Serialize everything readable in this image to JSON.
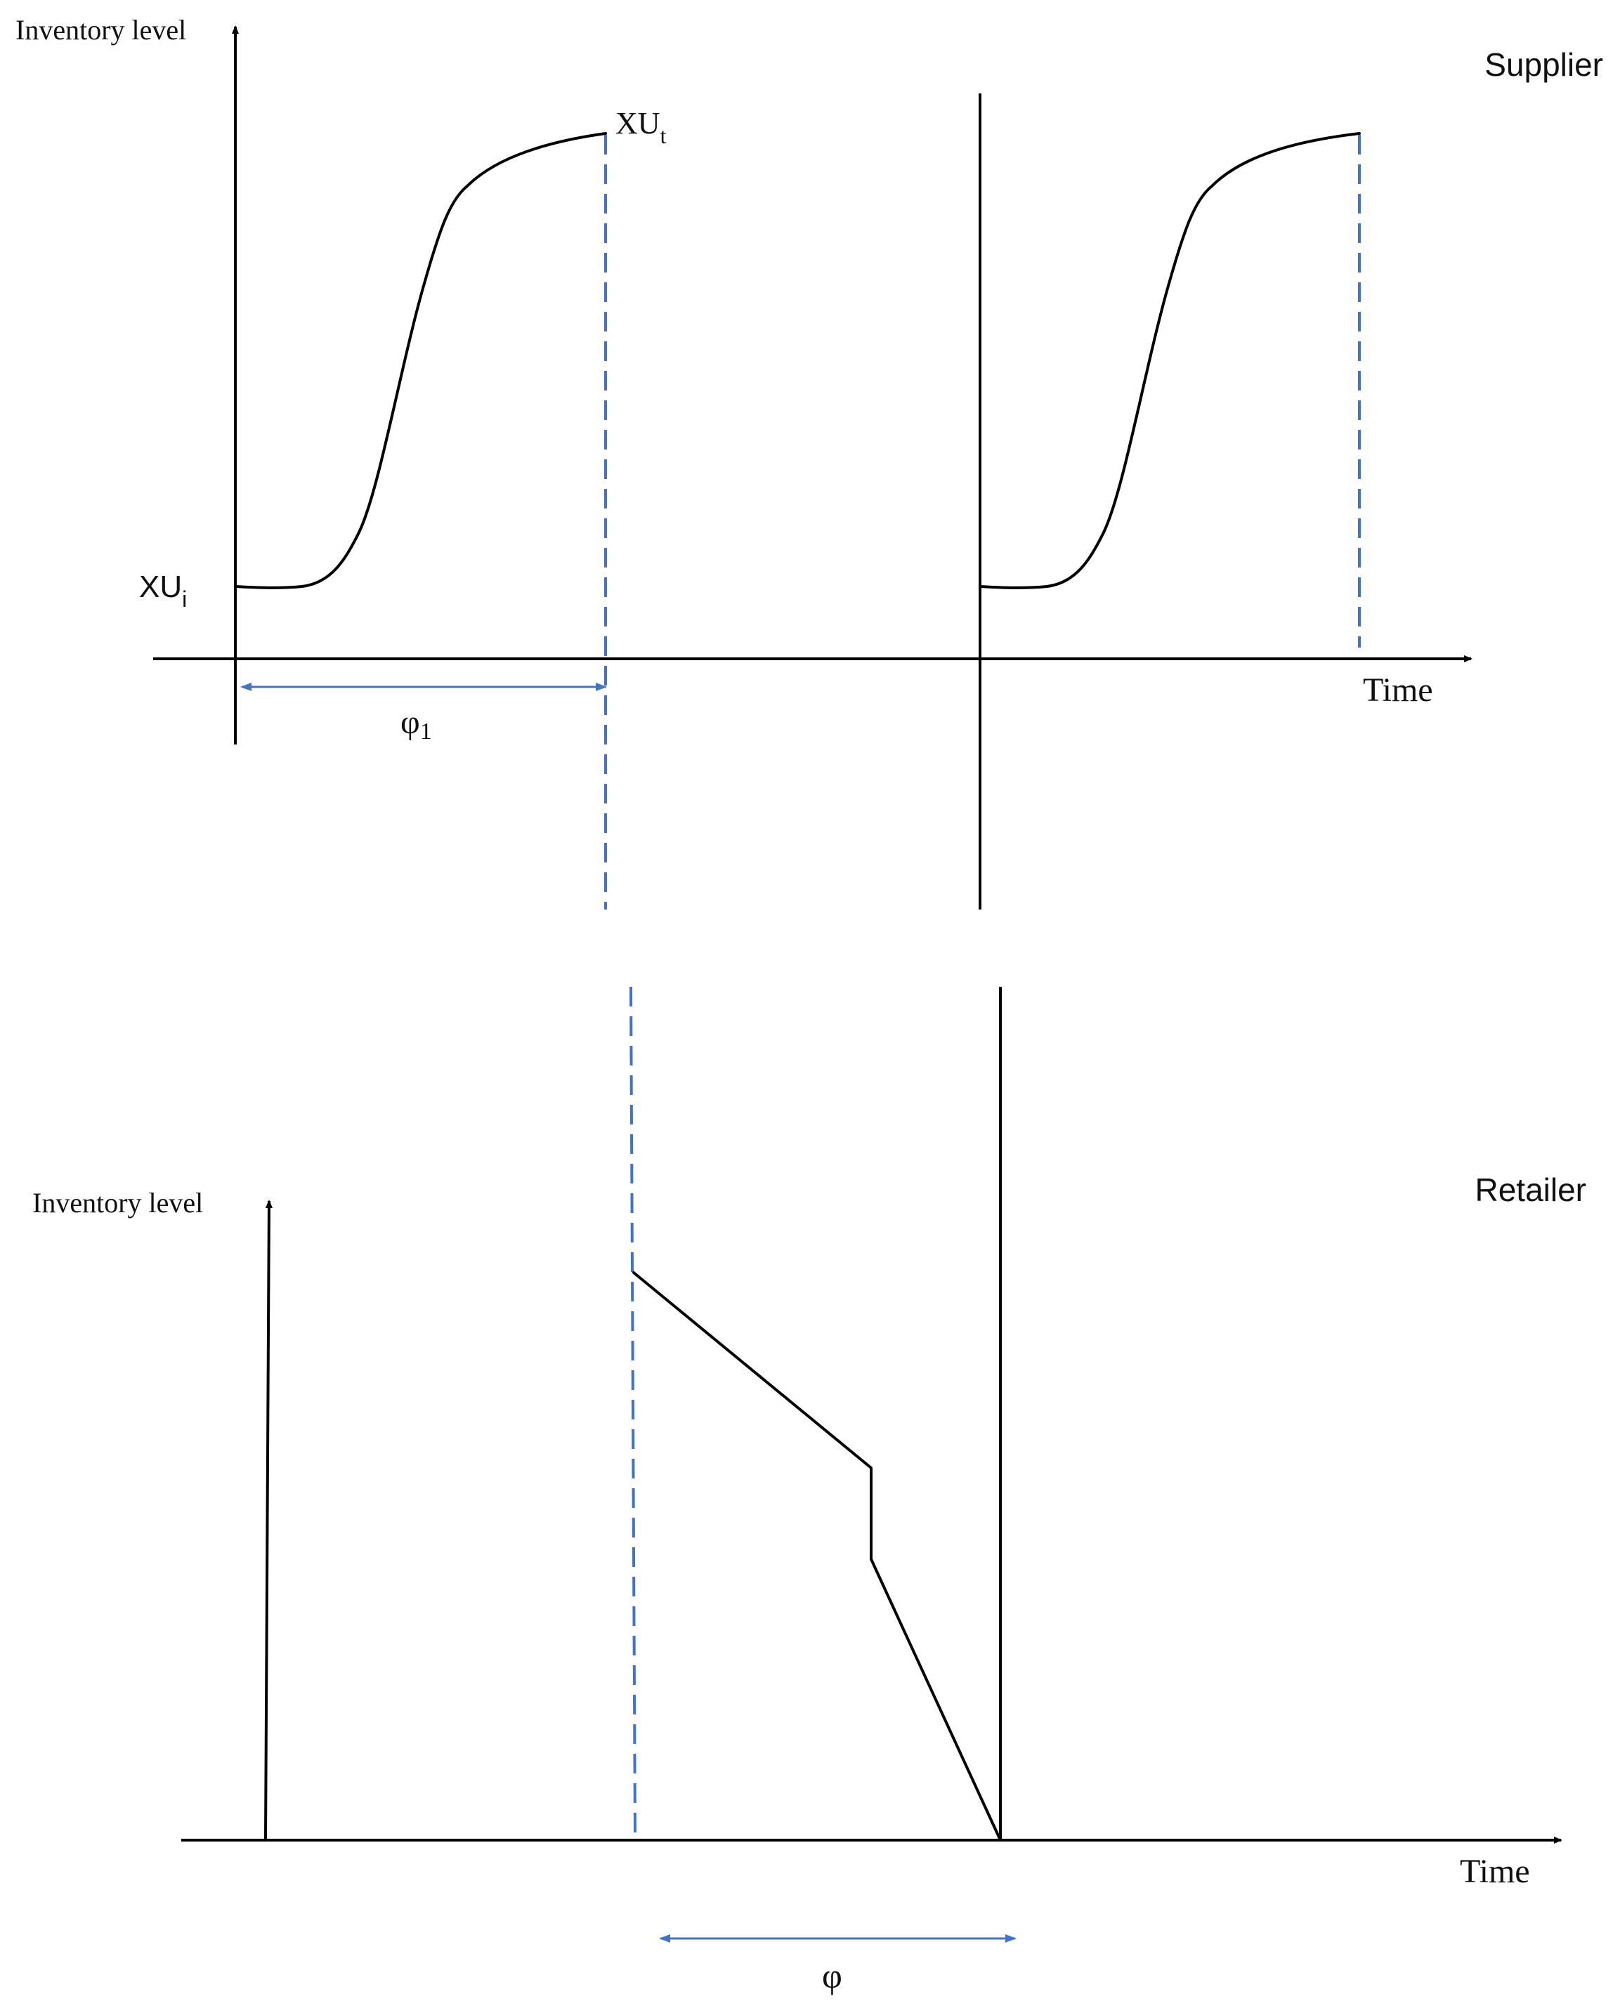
{
  "supplier": {
    "title": "Supplier",
    "y_label": "Inventory level",
    "x_label": "Time",
    "label_start": "XU",
    "label_start_sub": "i",
    "label_end": "XU",
    "label_end_sub": "t",
    "interval_label": "φ",
    "interval_label_sub": "1"
  },
  "retailer": {
    "title": "Retailer",
    "y_label": "Inventory level",
    "x_label": "Time",
    "interval_label": "φ"
  },
  "colors": {
    "line": "#000000",
    "accent": "#4472C4"
  }
}
